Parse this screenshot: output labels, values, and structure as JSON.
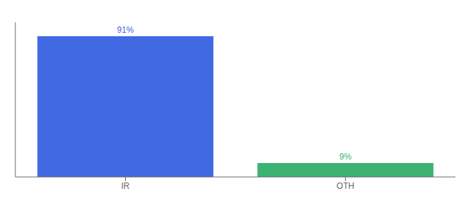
{
  "chart_data": {
    "type": "bar",
    "categories": [
      "IR",
      "OTH"
    ],
    "values": [
      91,
      9
    ],
    "value_labels": [
      "91%",
      "9%"
    ],
    "colors": [
      "#4169E1",
      "#3CB371"
    ],
    "data_labels": true,
    "ylim": [
      0,
      100
    ],
    "grid": false,
    "tick_labels": "x"
  }
}
